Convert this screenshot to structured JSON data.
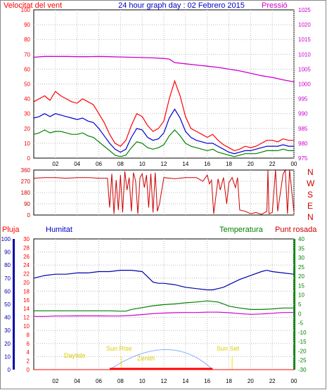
{
  "header": {
    "left_label": "Velocitat del vent",
    "center_label": "24 hour graph day : 02 Febrero 2015",
    "right_label": "Pressió"
  },
  "bottom_header": {
    "pluja": "Pluja",
    "humitat": "Humitat",
    "temperatura": "Temperatura",
    "punt_rosada": "Punt rosada"
  },
  "sun_labels": {
    "daytide": "Daytide",
    "sun_rise": "Sun Rise",
    "sun_set": "Sun Set",
    "zenith": "Zenith"
  },
  "x_ticks": [
    "02",
    "04",
    "06",
    "08",
    "10",
    "12",
    "14",
    "16",
    "18",
    "20",
    "22",
    "00"
  ],
  "direction_letters": [
    "N",
    "W",
    "S",
    "E",
    "N"
  ],
  "colors": {
    "wind_gust": "#ff0000",
    "wind_avg": "#0000cc",
    "wind_low": "#008000",
    "pressure": "#cc00cc",
    "direction": "#cc0000",
    "humidity": "#0000aa",
    "temperature": "#008000",
    "dew_point": "#cc00cc",
    "rain": "#ff0000",
    "sun_curve": "#88aaff",
    "sun_marker": "#ffdd00"
  },
  "chart_data": [
    {
      "type": "line",
      "panel": "wind_pressure",
      "y_left_ticks": [
        "0",
        "10",
        "20",
        "30",
        "40",
        "50",
        "60",
        "70",
        "80",
        "90",
        "100"
      ],
      "y_right_ticks": [
        "975",
        "980",
        "985",
        "990",
        "995",
        "1000",
        "1005",
        "1010",
        "1015",
        "1020",
        "1025"
      ],
      "ylim_left": [
        0,
        100
      ],
      "ylim_right": [
        975,
        1025
      ],
      "xlim": [
        0,
        24
      ],
      "series": [
        {
          "name": "Velocitat del vent",
          "axis": "left",
          "x": [
            0,
            0.5,
            1,
            1.5,
            2,
            2.5,
            3,
            3.5,
            4,
            4.5,
            5,
            5.5,
            6,
            6.5,
            7,
            7.5,
            8,
            8.5,
            9,
            9.5,
            10,
            10.5,
            11,
            11.5,
            12,
            12.5,
            13,
            13.5,
            14,
            14.5,
            15,
            15.5,
            16,
            16.5,
            17,
            17.5,
            18,
            18.5,
            19,
            19.5,
            20,
            20.5,
            21,
            21.5,
            22,
            22.5,
            23,
            23.5,
            24
          ],
          "values": [
            38,
            40,
            42,
            39,
            45,
            42,
            40,
            38,
            37,
            40,
            38,
            36,
            30,
            24,
            16,
            10,
            8,
            12,
            22,
            30,
            28,
            22,
            18,
            20,
            25,
            40,
            52,
            42,
            28,
            20,
            18,
            16,
            14,
            16,
            12,
            9,
            7,
            5,
            6,
            8,
            7,
            8,
            10,
            12,
            12,
            11,
            13,
            12,
            12
          ]
        },
        {
          "axis": "left",
          "x": [
            0,
            0.5,
            1,
            1.5,
            2,
            2.5,
            3,
            3.5,
            4,
            4.5,
            5,
            5.5,
            6,
            6.5,
            7,
            7.5,
            8,
            8.5,
            9,
            9.5,
            10,
            10.5,
            11,
            11.5,
            12,
            12.5,
            13,
            13.5,
            14,
            14.5,
            15,
            15.5,
            16,
            16.5,
            17,
            17.5,
            18,
            18.5,
            19,
            19.5,
            20,
            20.5,
            21,
            21.5,
            22,
            22.5,
            23,
            23.5,
            24
          ],
          "values": [
            27,
            28,
            30,
            28,
            30,
            29,
            28,
            27,
            26,
            27,
            25,
            24,
            20,
            15,
            10,
            6,
            4,
            6,
            14,
            20,
            19,
            14,
            12,
            13,
            17,
            27,
            33,
            27,
            18,
            14,
            12,
            11,
            10,
            10,
            8,
            6,
            4,
            3,
            4,
            5,
            5,
            6,
            7,
            8,
            8,
            8,
            9,
            8,
            8
          ]
        },
        {
          "axis": "left",
          "x": [
            0,
            0.5,
            1,
            1.5,
            2,
            2.5,
            3,
            3.5,
            4,
            4.5,
            5,
            5.5,
            6,
            6.5,
            7,
            7.5,
            8,
            8.5,
            9,
            9.5,
            10,
            10.5,
            11,
            11.5,
            12,
            12.5,
            13,
            13.5,
            14,
            14.5,
            15,
            15.5,
            16,
            16.5,
            17,
            17.5,
            18,
            18.5,
            19,
            19.5,
            20,
            20.5,
            21,
            21.5,
            22,
            22.5,
            23,
            23.5,
            24
          ],
          "values": [
            16,
            17,
            19,
            17,
            18,
            18,
            17,
            16,
            16,
            17,
            15,
            14,
            11,
            8,
            5,
            2,
            1,
            2,
            7,
            11,
            10,
            7,
            6,
            7,
            9,
            15,
            19,
            15,
            10,
            8,
            7,
            6,
            5,
            6,
            4,
            3,
            2,
            1,
            2,
            3,
            3,
            3,
            4,
            5,
            5,
            5,
            6,
            5,
            5
          ]
        },
        {
          "name": "Pressió",
          "axis": "right",
          "x": [
            0,
            1,
            2,
            3,
            4,
            5,
            6,
            7,
            8,
            9,
            10,
            11,
            12,
            12.5,
            13,
            14,
            15,
            16,
            17,
            18,
            19,
            20,
            21,
            22,
            23,
            24
          ],
          "values": [
            1009,
            1009.3,
            1009.3,
            1009.3,
            1009.2,
            1009.2,
            1009.3,
            1009.2,
            1009.1,
            1009,
            1008.9,
            1008.8,
            1008.6,
            1008.4,
            1007.2,
            1006.8,
            1006.4,
            1006,
            1005.6,
            1005,
            1004.4,
            1003.6,
            1002.8,
            1002.2,
            1001.4,
            1000.7
          ]
        }
      ]
    },
    {
      "type": "line",
      "panel": "wind_direction",
      "y_left_ticks": [
        "0",
        "90",
        "180",
        "270",
        "360"
      ],
      "ylim": [
        0,
        360
      ],
      "xlim": [
        0,
        24
      ],
      "series": [
        {
          "axis": "left",
          "x": [
            0,
            1,
            2,
            3,
            4,
            5,
            6,
            6.8,
            7,
            7.2,
            7.4,
            7.6,
            7.8,
            8,
            8.2,
            8.4,
            8.6,
            8.8,
            9,
            9.2,
            9.4,
            9.6,
            9.8,
            10,
            10.2,
            10.4,
            10.6,
            10.8,
            11,
            11.2,
            11.4,
            11.6,
            12,
            13,
            14,
            15,
            15.6,
            16,
            16.2,
            16.4,
            16.6,
            17,
            17.2,
            17.5,
            17.8,
            18,
            18.3,
            18.6,
            18.8,
            19,
            19.5,
            20,
            20.5,
            21,
            21.5,
            21.6,
            21.7,
            22,
            22.3,
            22.5,
            23,
            23.2,
            23.4,
            23.6,
            24
          ],
          "values": [
            295,
            300,
            300,
            295,
            300,
            300,
            295,
            295,
            60,
            330,
            10,
            280,
            40,
            320,
            20,
            350,
            200,
            300,
            30,
            340,
            270,
            10,
            300,
            330,
            220,
            320,
            60,
            330,
            20,
            340,
            30,
            90,
            300,
            290,
            300,
            300,
            270,
            320,
            250,
            280,
            10,
            290,
            200,
            300,
            90,
            260,
            300,
            220,
            300,
            40,
            30,
            10,
            20,
            5,
            30,
            360,
            10,
            20,
            360,
            30,
            330,
            360,
            10,
            360,
            20
          ]
        }
      ]
    },
    {
      "type": "line",
      "panel": "humidity_temperature",
      "y_left_ticks": [
        "0",
        "10",
        "20",
        "30",
        "40",
        "50",
        "60",
        "70",
        "80",
        "90",
        "100"
      ],
      "y_rain_ticks": [
        "0",
        "2",
        "4",
        "6",
        "8",
        "10",
        "12",
        "14",
        "16",
        "18",
        "20",
        "22",
        "24",
        "26",
        "28",
        "30"
      ],
      "y_right_ticks": [
        "-30",
        "-25",
        "-20",
        "-15",
        "-10",
        "-5",
        "0",
        "5",
        "10",
        "15",
        "20",
        "25",
        "30",
        "35",
        "40"
      ],
      "ylim_left": [
        0,
        100
      ],
      "ylim_rain": [
        0,
        30
      ],
      "ylim_right": [
        -30,
        40
      ],
      "xlim": [
        0,
        24
      ],
      "series": [
        {
          "name": "Humitat",
          "axis": "left",
          "x": [
            0,
            0.5,
            1,
            2,
            3,
            4,
            5,
            6,
            7,
            8,
            9,
            10,
            10.5,
            11,
            11.5,
            12,
            13,
            14,
            15,
            16,
            16.5,
            17,
            17.5,
            18,
            19,
            20,
            21,
            21.5,
            22,
            23,
            24
          ],
          "values": [
            70,
            71,
            72,
            73,
            73,
            74,
            74,
            75,
            75,
            76,
            76,
            75,
            71,
            67,
            66,
            66,
            65,
            63,
            62,
            61,
            61,
            62,
            63,
            65,
            69,
            72,
            75,
            76,
            75,
            74,
            73
          ]
        },
        {
          "name": "Temperatura",
          "axis": "right",
          "x": [
            0,
            1,
            2,
            3,
            4,
            5,
            6,
            7,
            8,
            8.5,
            9,
            10,
            11,
            12,
            13,
            14,
            15,
            16,
            17,
            17.5,
            18,
            19,
            20,
            21,
            22,
            23,
            24
          ],
          "values": [
            1.5,
            1.5,
            1.5,
            1.5,
            1.5,
            1.5,
            1.5,
            1.5,
            1.3,
            1.3,
            2.2,
            3.2,
            4.2,
            4.8,
            5.2,
            5.8,
            6.2,
            6.8,
            6.2,
            5.2,
            4,
            3,
            2.2,
            2.2,
            2.5,
            3,
            3
          ]
        },
        {
          "name": "Punt rosada",
          "axis": "right",
          "x": [
            0,
            1,
            2,
            3,
            4,
            5,
            6,
            7,
            8,
            9,
            10,
            11,
            12,
            13,
            14,
            15,
            16,
            17,
            18,
            19,
            20,
            21,
            22,
            23,
            24
          ],
          "values": [
            -1.5,
            -1.5,
            -1.3,
            -1.3,
            -1.2,
            -1.2,
            -1.2,
            -1.3,
            -1.3,
            -1,
            -0.5,
            0,
            0.3,
            0.5,
            0.6,
            0.6,
            0.8,
            0.8,
            0.5,
            0,
            -0.4,
            -0.2,
            0.2,
            0.6,
            0.6
          ]
        },
        {
          "name": "Pluja",
          "axis": "rain",
          "x": [
            0,
            24
          ],
          "values": [
            0,
            0
          ]
        }
      ],
      "sun": {
        "sunrise_hour": 8.1,
        "sunset_hour": 18.3,
        "zenith_hour": 12.6,
        "daylight_from": 7.0,
        "daylight_to": 16.5
      }
    }
  ]
}
